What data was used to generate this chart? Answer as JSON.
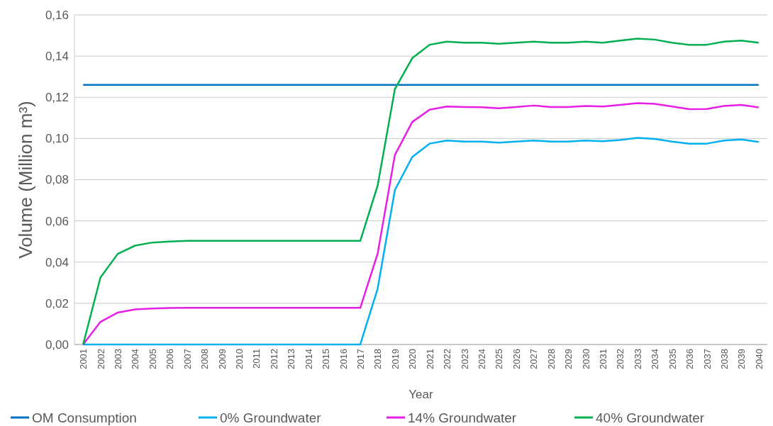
{
  "chart_data": {
    "type": "line",
    "xlabel": "Year",
    "ylabel": "Volume (Million m³)",
    "categories": [
      "2001",
      "2002",
      "2003",
      "2004",
      "2005",
      "2006",
      "2007",
      "2008",
      "2009",
      "2010",
      "2011",
      "2012",
      "2013",
      "2014",
      "2015",
      "2016",
      "2017",
      "2018",
      "2019",
      "2020",
      "2021",
      "2022",
      "2023",
      "2024",
      "2025",
      "2026",
      "2027",
      "2028",
      "2029",
      "2030",
      "2031",
      "2032",
      "2033",
      "2034",
      "2035",
      "2036",
      "2037",
      "2038",
      "2039",
      "2040"
    ],
    "series": [
      {
        "name": "OM Consumption",
        "color": "#0070c0",
        "values": [
          0.126,
          0.126,
          0.126,
          0.126,
          0.126,
          0.126,
          0.126,
          0.126,
          0.126,
          0.126,
          0.126,
          0.126,
          0.126,
          0.126,
          0.126,
          0.126,
          0.126,
          0.126,
          0.126,
          0.126,
          0.126,
          0.126,
          0.126,
          0.126,
          0.126,
          0.126,
          0.126,
          0.126,
          0.126,
          0.126,
          0.126,
          0.126,
          0.126,
          0.126,
          0.126,
          0.126,
          0.126,
          0.126,
          0.126,
          0.126
        ]
      },
      {
        "name": "0% Groundwater",
        "color": "#00b0f0",
        "values": [
          0,
          0,
          0,
          0,
          0,
          0,
          0,
          0,
          0,
          0,
          0,
          0,
          0,
          0,
          0,
          0,
          0,
          0.027,
          0.075,
          0.091,
          0.0975,
          0.099,
          0.0985,
          0.0985,
          0.098,
          0.0985,
          0.099,
          0.0985,
          0.0985,
          0.099,
          0.0987,
          0.0993,
          0.1003,
          0.0998,
          0.0985,
          0.0975,
          0.0975,
          0.099,
          0.0995,
          0.0983
        ]
      },
      {
        "name": "14% Groundwater",
        "color": "#e61ee6",
        "values": [
          0,
          0.011,
          0.0155,
          0.017,
          0.0175,
          0.0177,
          0.0178,
          0.0178,
          0.0178,
          0.0178,
          0.0178,
          0.0178,
          0.0178,
          0.0178,
          0.0178,
          0.0178,
          0.0178,
          0.044,
          0.092,
          0.108,
          0.114,
          0.1155,
          0.1153,
          0.1152,
          0.1147,
          0.1153,
          0.116,
          0.1153,
          0.1153,
          0.1158,
          0.1155,
          0.1163,
          0.1172,
          0.1168,
          0.1155,
          0.1142,
          0.1143,
          0.1158,
          0.1163,
          0.1151
        ]
      },
      {
        "name": "40% Groundwater",
        "color": "#00b050",
        "values": [
          0,
          0.0325,
          0.044,
          0.048,
          0.0495,
          0.05,
          0.0503,
          0.0503,
          0.0503,
          0.0503,
          0.0503,
          0.0503,
          0.0503,
          0.0503,
          0.0503,
          0.0503,
          0.0503,
          0.077,
          0.124,
          0.139,
          0.1455,
          0.147,
          0.1465,
          0.1465,
          0.146,
          0.1465,
          0.147,
          0.1465,
          0.1465,
          0.147,
          0.1465,
          0.1475,
          0.1485,
          0.148,
          0.1465,
          0.1455,
          0.1455,
          0.147,
          0.1475,
          0.1465
        ]
      }
    ],
    "ylim": [
      0,
      0.16
    ],
    "yticks": [
      {
        "value": 0,
        "label": "0,00"
      },
      {
        "value": 0.02,
        "label": "0,02"
      },
      {
        "value": 0.04,
        "label": "0,04"
      },
      {
        "value": 0.06,
        "label": "0,06"
      },
      {
        "value": 0.08,
        "label": "0,08"
      },
      {
        "value": 0.1,
        "label": "0,10"
      },
      {
        "value": 0.12,
        "label": "0,12"
      },
      {
        "value": 0.14,
        "label": "0,14"
      },
      {
        "value": 0.16,
        "label": "0,16"
      }
    ],
    "grid": "y",
    "legend": "bottom",
    "marker": "none",
    "line_style": "solid"
  }
}
